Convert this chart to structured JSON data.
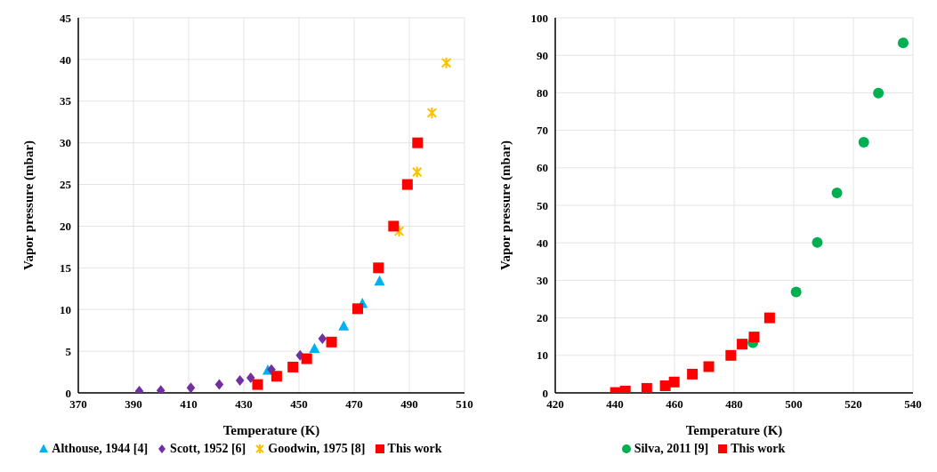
{
  "chart_data": [
    {
      "type": "scatter",
      "xlabel": "Temperature (K)",
      "ylabel": "Vapor pressure (mbar)",
      "xlim": [
        370,
        510
      ],
      "xticks": [
        370,
        390,
        410,
        430,
        450,
        470,
        490,
        510
      ],
      "ylim": [
        0,
        45
      ],
      "yticks": [
        0,
        5,
        10,
        15,
        20,
        25,
        30,
        35,
        40,
        45
      ],
      "grid": true,
      "legend": "bottom",
      "series": [
        {
          "name": "Althouse, 1944 [4]",
          "color": "#00b0f0",
          "marker": "triangle",
          "x": [
            438.7,
            455.6,
            466.2,
            473.0,
            479.2
          ],
          "values": [
            2.7,
            5.3,
            8.0,
            10.7,
            13.4
          ]
        },
        {
          "name": "Scott, 1952 [6]",
          "color": "#7030a0",
          "marker": "diamond",
          "x": [
            392.1,
            399.9,
            410.8,
            421.1,
            428.6,
            432.5,
            440.0,
            450.4,
            458.5
          ],
          "values": [
            0.2,
            0.3,
            0.6,
            1.0,
            1.5,
            1.8,
            2.8,
            4.5,
            6.5
          ]
        },
        {
          "name": "Goodwin, 1975 [8]",
          "color": "#ffc000",
          "marker": "cross",
          "x": [
            486.3,
            492.8,
            498.2,
            503.4
          ],
          "values": [
            19.4,
            26.5,
            33.6,
            39.6
          ]
        },
        {
          "name": "This work",
          "color": "#ff0000",
          "marker": "square",
          "x": [
            435.0,
            441.9,
            447.8,
            452.8,
            461.8,
            471.3,
            478.8,
            484.3,
            489.3,
            493.0
          ],
          "values": [
            1.0,
            2.0,
            3.1,
            4.1,
            6.1,
            10.1,
            15.0,
            20.0,
            25.0,
            30.0
          ]
        }
      ]
    },
    {
      "type": "scatter",
      "xlabel": "Temperature (K)",
      "ylabel": "Vapor pressure (mbar)",
      "xlim": [
        420,
        540
      ],
      "xticks": [
        420,
        440,
        460,
        480,
        500,
        520,
        540
      ],
      "ylim": [
        0,
        100
      ],
      "yticks": [
        0,
        10,
        20,
        30,
        40,
        50,
        60,
        70,
        80,
        90,
        100
      ],
      "grid": true,
      "legend": "bottom",
      "series": [
        {
          "name": "Silva, 2011 [9]",
          "color": "#00b050",
          "marker": "circle",
          "x": [
            486.3,
            500.8,
            507.9,
            514.5,
            523.5,
            528.4,
            536.7
          ],
          "values": [
            13.4,
            26.9,
            40.1,
            53.3,
            66.8,
            79.9,
            93.3
          ]
        },
        {
          "name": "This work",
          "color": "#ff0000",
          "marker": "square",
          "x": [
            440.2,
            443.5,
            450.7,
            456.9,
            459.9,
            466.0,
            471.5,
            478.9,
            482.7,
            486.7,
            491.9
          ],
          "values": [
            0.1,
            0.5,
            1.2,
            1.9,
            2.9,
            5.0,
            7.0,
            10.0,
            13.0,
            14.9,
            20.0
          ]
        }
      ]
    }
  ]
}
